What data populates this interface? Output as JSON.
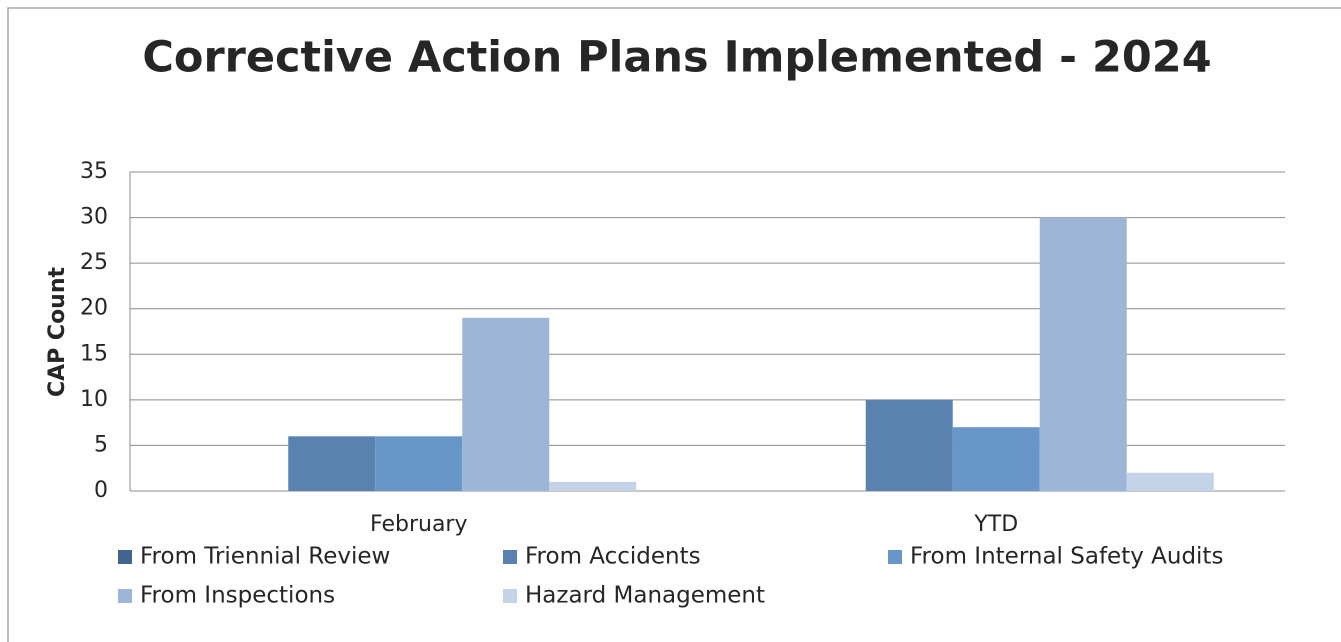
{
  "chart_data": {
    "type": "bar",
    "title": "Corrective Action Plans Implemented - 2024",
    "y_label": "CAP Count",
    "categories": [
      "February",
      "YTD"
    ],
    "series": [
      {
        "name": "From Triennial Review",
        "color": "#41658f",
        "values": [
          0,
          0
        ]
      },
      {
        "name": "From Accidents",
        "color": "#5a82b0",
        "values": [
          6,
          10
        ]
      },
      {
        "name": "From Internal Safety Audits",
        "color": "#6896c8",
        "values": [
          6,
          7
        ]
      },
      {
        "name": "From Inspections",
        "color": "#9db5d7",
        "values": [
          19,
          30
        ]
      },
      {
        "name": "Hazard Management",
        "color": "#c5d3e8",
        "values": [
          1,
          2
        ]
      }
    ],
    "ylim": [
      0,
      35
    ],
    "yticks": [
      0,
      5,
      10,
      15,
      20,
      25,
      30,
      35
    ],
    "grid": true,
    "legend": "bottom"
  }
}
